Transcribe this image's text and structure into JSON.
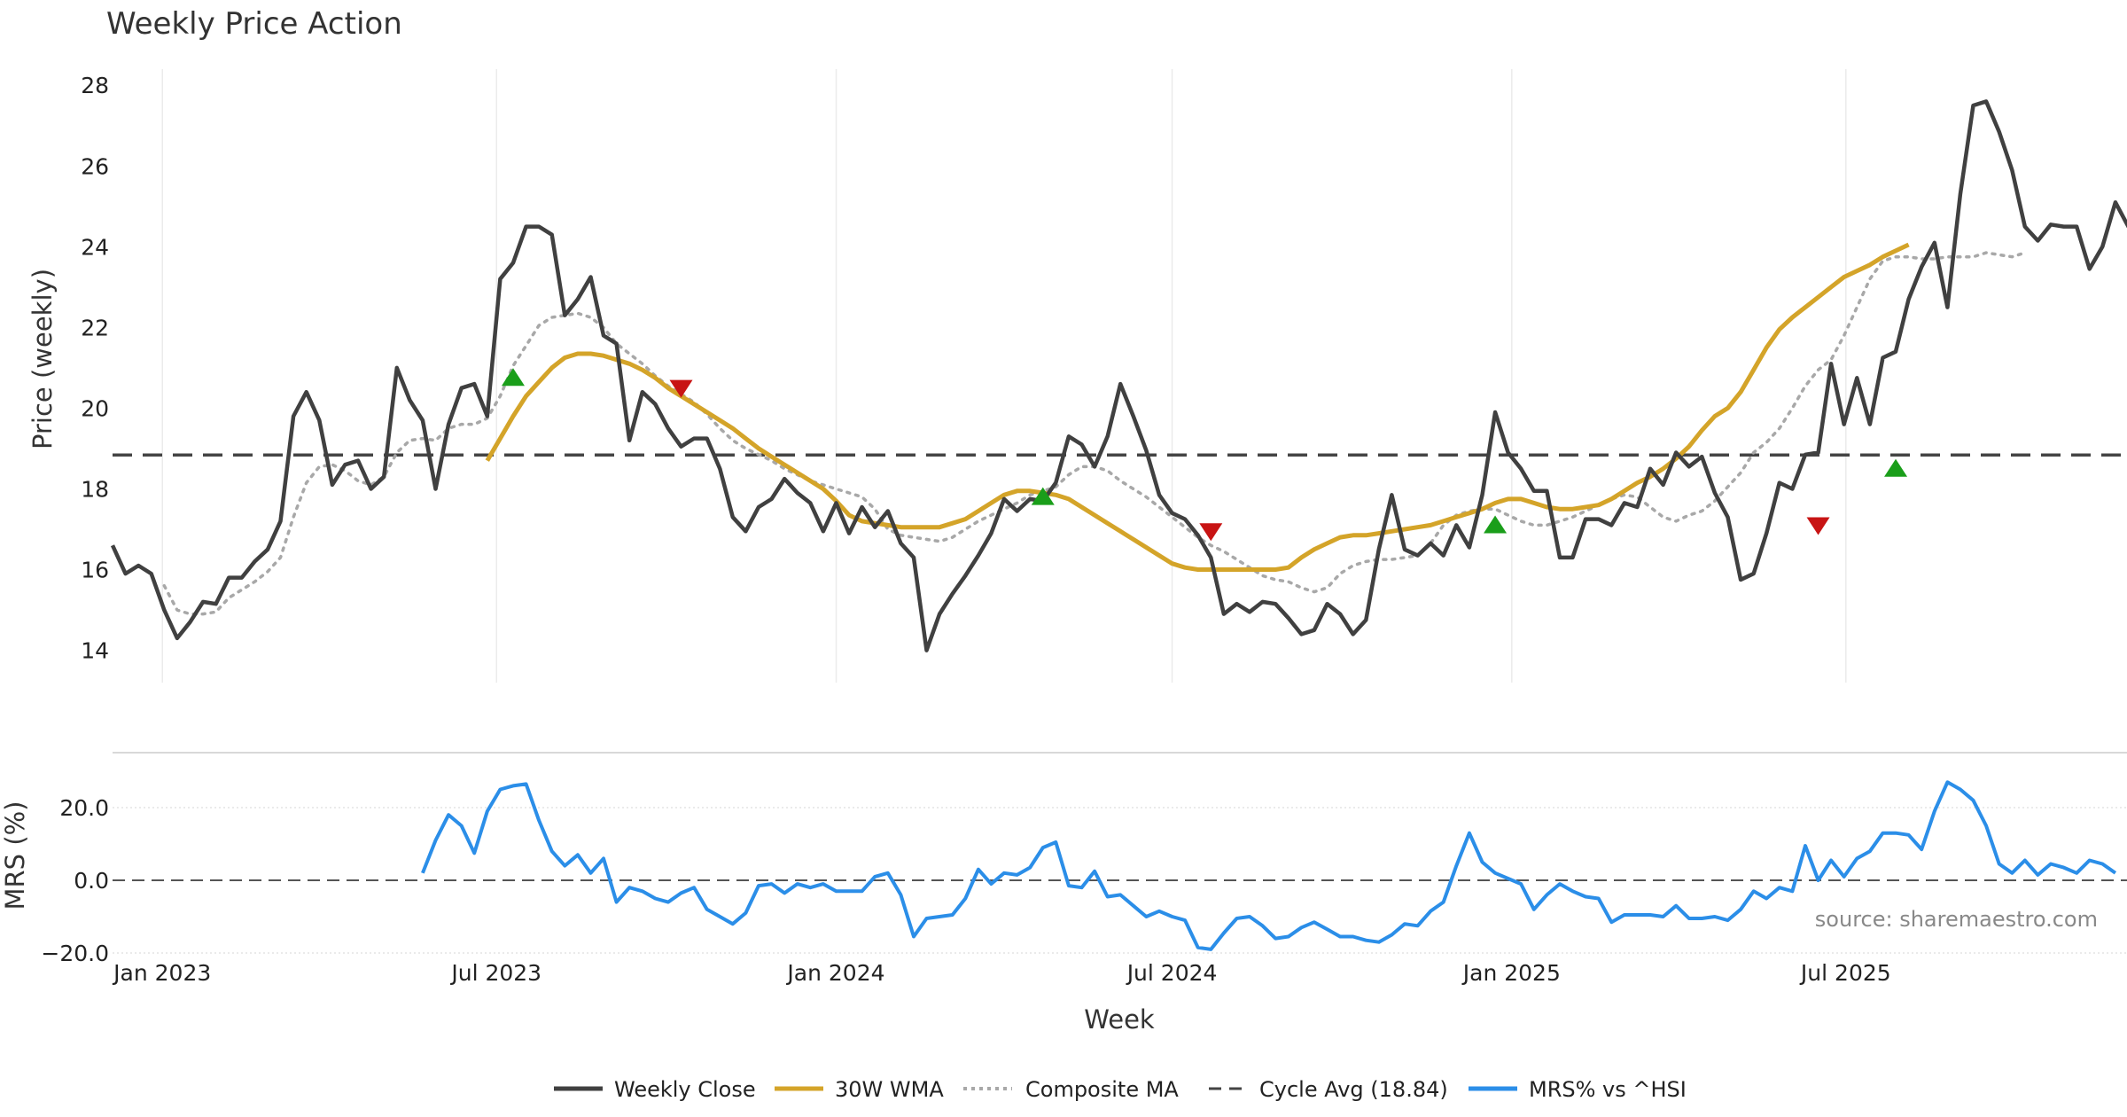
{
  "chart_data": [
    {
      "type": "line",
      "title": "Weekly Price Action",
      "xlabel": "Week",
      "ylabel": "Price (weekly)",
      "ylim": [
        13.2,
        28.4
      ],
      "yticks": [
        "14",
        "16",
        "18",
        "20",
        "22",
        "24",
        "26",
        "28"
      ],
      "x_range": [
        "2022-12-05",
        "2025-10-20"
      ],
      "xticks": [
        "Jan 2023",
        "Jul 2023",
        "Jan 2024",
        "Jul 2024",
        "Jan 2025",
        "Jul 2025"
      ],
      "grid": "vertical",
      "cycle_avg": 18.84,
      "series": [
        {
          "name": "Weekly Close",
          "color": "#404040",
          "style": "solid",
          "start_week": 0,
          "values": [
            16.6,
            15.9,
            16.1,
            15.9,
            15.0,
            14.3,
            14.7,
            15.2,
            15.15,
            15.8,
            15.8,
            16.2,
            16.5,
            17.2,
            19.8,
            20.4,
            19.7,
            18.1,
            18.6,
            18.7,
            18.0,
            18.3,
            21.0,
            20.2,
            19.7,
            18.0,
            19.6,
            20.5,
            20.6,
            19.8,
            23.2,
            23.6,
            24.5,
            24.5,
            24.3,
            22.3,
            22.7,
            23.25,
            21.8,
            21.6,
            19.2,
            20.4,
            20.1,
            19.5,
            19.05,
            19.25,
            19.25,
            18.5,
            17.3,
            16.95,
            17.55,
            17.75,
            18.25,
            17.9,
            17.65,
            16.95,
            17.65,
            16.9,
            17.55,
            17.05,
            17.45,
            16.65,
            16.3,
            14.0,
            14.9,
            15.4,
            15.85,
            16.35,
            16.9,
            17.75,
            17.45,
            17.75,
            17.7,
            18.15,
            19.3,
            19.1,
            18.55,
            19.3,
            20.6,
            19.8,
            18.95,
            17.85,
            17.4,
            17.25,
            16.85,
            16.3,
            14.9,
            15.15,
            14.95,
            15.2,
            15.15,
            14.8,
            14.4,
            14.5,
            15.15,
            14.9,
            14.4,
            14.75,
            16.5,
            17.85,
            16.5,
            16.35,
            16.65,
            16.35,
            17.1,
            16.55,
            17.85,
            19.9,
            18.9,
            18.5,
            17.95,
            17.95,
            16.3,
            16.3,
            17.25,
            17.25,
            17.1,
            17.65,
            17.55,
            18.5,
            18.1,
            18.9,
            18.55,
            18.8,
            17.9,
            17.3,
            15.75,
            15.9,
            16.9,
            18.15,
            18.0,
            18.85,
            18.9,
            21.1,
            19.6,
            20.75,
            19.6,
            21.25,
            21.4,
            22.7,
            23.5,
            24.1,
            22.5,
            25.3,
            27.5,
            27.6,
            26.85,
            25.9,
            24.5,
            24.15,
            24.55,
            24.5,
            24.5,
            23.45,
            24.0,
            25.1,
            24.5,
            24.7
          ]
        },
        {
          "name": "30W WMA",
          "color": "#d4a429",
          "style": "solid",
          "start_week": 29,
          "values": [
            18.7,
            19.25,
            19.8,
            20.3,
            20.65,
            21.0,
            21.25,
            21.35,
            21.35,
            21.3,
            21.2,
            21.1,
            20.95,
            20.75,
            20.5,
            20.3,
            20.1,
            19.9,
            19.7,
            19.5,
            19.25,
            19.0,
            18.8,
            18.6,
            18.4,
            18.2,
            18.0,
            17.7,
            17.35,
            17.2,
            17.15,
            17.1,
            17.05,
            17.05,
            17.05,
            17.05,
            17.15,
            17.25,
            17.45,
            17.65,
            17.85,
            17.95,
            17.95,
            17.9,
            17.85,
            17.75,
            17.55,
            17.35,
            17.15,
            16.95,
            16.75,
            16.55,
            16.35,
            16.15,
            16.05,
            16.0,
            16.0,
            16.0,
            16.0,
            16.0,
            16.0,
            16.0,
            16.05,
            16.3,
            16.5,
            16.65,
            16.8,
            16.85,
            16.85,
            16.9,
            16.95,
            17.0,
            17.05,
            17.1,
            17.2,
            17.3,
            17.4,
            17.5,
            17.65,
            17.75,
            17.75,
            17.65,
            17.55,
            17.5,
            17.5,
            17.55,
            17.6,
            17.75,
            17.95,
            18.15,
            18.3,
            18.5,
            18.75,
            19.05,
            19.45,
            19.8,
            20.0,
            20.4,
            20.95,
            21.5,
            21.95,
            22.25,
            22.5,
            22.75,
            23.0,
            23.25,
            23.4,
            23.55,
            23.75,
            23.9,
            24.05
          ]
        },
        {
          "name": "Composite MA",
          "color": "#a8a8a8",
          "style": "dotted",
          "start_week": 4,
          "values": [
            15.6,
            15.0,
            14.9,
            14.9,
            14.95,
            15.3,
            15.5,
            15.7,
            15.95,
            16.3,
            17.3,
            18.15,
            18.55,
            18.6,
            18.45,
            18.2,
            18.1,
            18.3,
            18.9,
            19.2,
            19.25,
            19.2,
            19.5,
            19.6,
            19.6,
            19.75,
            20.3,
            21.05,
            21.55,
            22.05,
            22.25,
            22.3,
            22.35,
            22.25,
            22.0,
            21.6,
            21.35,
            21.1,
            20.8,
            20.55,
            20.35,
            20.15,
            19.85,
            19.5,
            19.2,
            19.0,
            18.85,
            18.7,
            18.5,
            18.35,
            18.2,
            18.1,
            18.0,
            17.9,
            17.8,
            17.5,
            17.0,
            16.85,
            16.8,
            16.75,
            16.7,
            16.8,
            17.0,
            17.2,
            17.35,
            17.5,
            17.65,
            17.85,
            17.95,
            18.05,
            18.35,
            18.55,
            18.55,
            18.45,
            18.2,
            18.0,
            17.8,
            17.55,
            17.3,
            17.05,
            16.8,
            16.6,
            16.45,
            16.25,
            16.05,
            15.85,
            15.75,
            15.7,
            15.55,
            15.45,
            15.55,
            15.9,
            16.1,
            16.2,
            16.25,
            16.25,
            16.3,
            16.35,
            16.65,
            17.1,
            17.35,
            17.45,
            17.5,
            17.5,
            17.35,
            17.2,
            17.1,
            17.1,
            17.2,
            17.3,
            17.45,
            17.6,
            17.75,
            17.85,
            17.8,
            17.55,
            17.3,
            17.2,
            17.35,
            17.45,
            17.7,
            18.05,
            18.4,
            18.9,
            19.15,
            19.5,
            20.0,
            20.55,
            20.95,
            21.2,
            21.8,
            22.5,
            23.2,
            23.65,
            23.75,
            23.75,
            23.7,
            23.7,
            23.75,
            23.75,
            23.75,
            23.85,
            23.8,
            23.75,
            23.85
          ]
        },
        {
          "name": "Cycle Avg (18.84)",
          "color": "#444444",
          "style": "dashed",
          "constant": 18.84
        }
      ],
      "markers": {
        "buy": {
          "color": "#1a9e1a",
          "points": [
            [
              31,
              20.75
            ],
            [
              72,
              17.8
            ],
            [
              107,
              17.1
            ],
            [
              138,
              18.5
            ]
          ]
        },
        "sell": {
          "color": "#c81414",
          "points": [
            [
              44,
              20.5
            ],
            [
              85,
              16.95
            ],
            [
              132,
              17.1
            ]
          ]
        }
      }
    },
    {
      "type": "line",
      "ylabel": "MRS (%)",
      "ylim": [
        -20,
        30
      ],
      "yticks": [
        "20.0",
        "0.0",
        "−20.0"
      ],
      "grid": "horizontal",
      "zero_line": 0,
      "series": [
        {
          "name": "MRS% vs ^HSI",
          "color": "#2b8ee8",
          "style": "solid",
          "start_week": 24,
          "values": [
            2,
            11,
            18,
            15,
            7.5,
            19,
            25,
            26,
            26.5,
            16.5,
            8,
            4,
            7,
            2,
            6,
            -6,
            -2,
            -3,
            -5,
            -6,
            -3.5,
            -2,
            -8,
            -10,
            -12,
            -9,
            -1.5,
            -1,
            -3.5,
            -1,
            -2,
            -1,
            -3,
            -3,
            -3,
            1,
            2,
            -4,
            -15.5,
            -10.5,
            -10,
            -9.5,
            -5,
            3,
            -1,
            2,
            1.5,
            3.5,
            9,
            10.5,
            -1.5,
            -2,
            2.5,
            -4.5,
            -4,
            -7,
            -10,
            -8.5,
            -10,
            -11,
            -18.5,
            -19,
            -14.5,
            -10.5,
            -10,
            -12.5,
            -16,
            -15.5,
            -13,
            -11.5,
            -13.5,
            -15.5,
            -15.5,
            -16.5,
            -17,
            -15,
            -12,
            -12.5,
            -8.5,
            -6,
            4,
            13,
            5,
            2,
            0.5,
            -1,
            -8,
            -4,
            -1,
            -3,
            -4.5,
            -5,
            -11.5,
            -9.5,
            -9.5,
            -9.5,
            -10,
            -7,
            -10.5,
            -10.5,
            -10,
            -11,
            -8,
            -3,
            -5,
            -2,
            -3,
            9.5,
            0,
            5.5,
            1,
            6,
            8,
            13,
            13,
            12.5,
            8.5,
            19,
            27,
            25,
            22,
            15,
            4.5,
            2,
            5.5,
            1.5,
            4.5,
            3.5,
            2,
            5.5,
            4.5,
            2
          ]
        }
      ]
    }
  ],
  "source_note": "source: sharemaestro.com"
}
